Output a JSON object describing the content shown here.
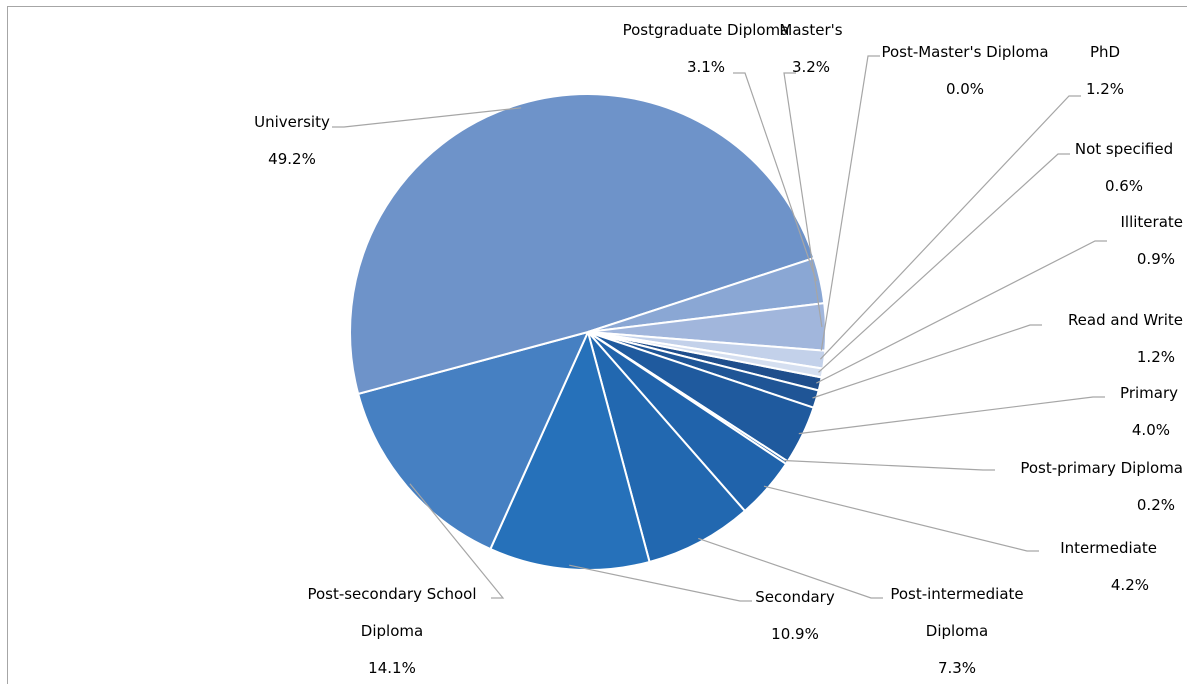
{
  "chart_data": {
    "type": "pie",
    "slices": [
      {
        "label": "Illiterate",
        "value": 0.9,
        "value_label": "0.9%",
        "color": "#1f4e8c"
      },
      {
        "label": "Read and Write",
        "value": 1.2,
        "value_label": "1.2%",
        "color": "#1f5596"
      },
      {
        "label": "Primary",
        "value": 4.0,
        "value_label": "4.0%",
        "color": "#1f5a9e"
      },
      {
        "label": "Post-primary Diploma",
        "value": 0.2,
        "value_label": "0.2%",
        "color": "#1f5fa6"
      },
      {
        "label": "Intermediate",
        "value": 4.2,
        "value_label": "4.2%",
        "color": "#2063ab"
      },
      {
        "label": "Post-intermediate Diploma",
        "value": 7.3,
        "value_label": "7.3%",
        "color": "#2268b0",
        "label_lines": [
          "Post-intermediate",
          "Diploma"
        ]
      },
      {
        "label": "Secondary",
        "value": 10.9,
        "value_label": "10.9%",
        "color": "#2671ba"
      },
      {
        "label": "Post-secondary School Diploma",
        "value": 14.1,
        "value_label": "14.1%",
        "color": "#4680c2",
        "label_lines": [
          "Post-secondary School",
          "Diploma"
        ]
      },
      {
        "label": "University",
        "value": 49.2,
        "value_label": "49.2%",
        "color": "#6e93c9"
      },
      {
        "label": "Postgraduate Diploma",
        "value": 3.1,
        "value_label": "3.1%",
        "color": "#8aa7d4"
      },
      {
        "label": "Master's",
        "value": 3.2,
        "value_label": "3.2%",
        "color": "#a1b6dc"
      },
      {
        "label": "Post-Master's Diploma",
        "value": 0.0,
        "value_label": "0.0%",
        "color": "#b8c8e4"
      },
      {
        "label": "PhD",
        "value": 1.2,
        "value_label": "1.2%",
        "color": "#c3d1ea"
      },
      {
        "label": "Not specified",
        "value": 0.6,
        "value_label": "0.6%",
        "color": "#d5dff0"
      }
    ]
  }
}
